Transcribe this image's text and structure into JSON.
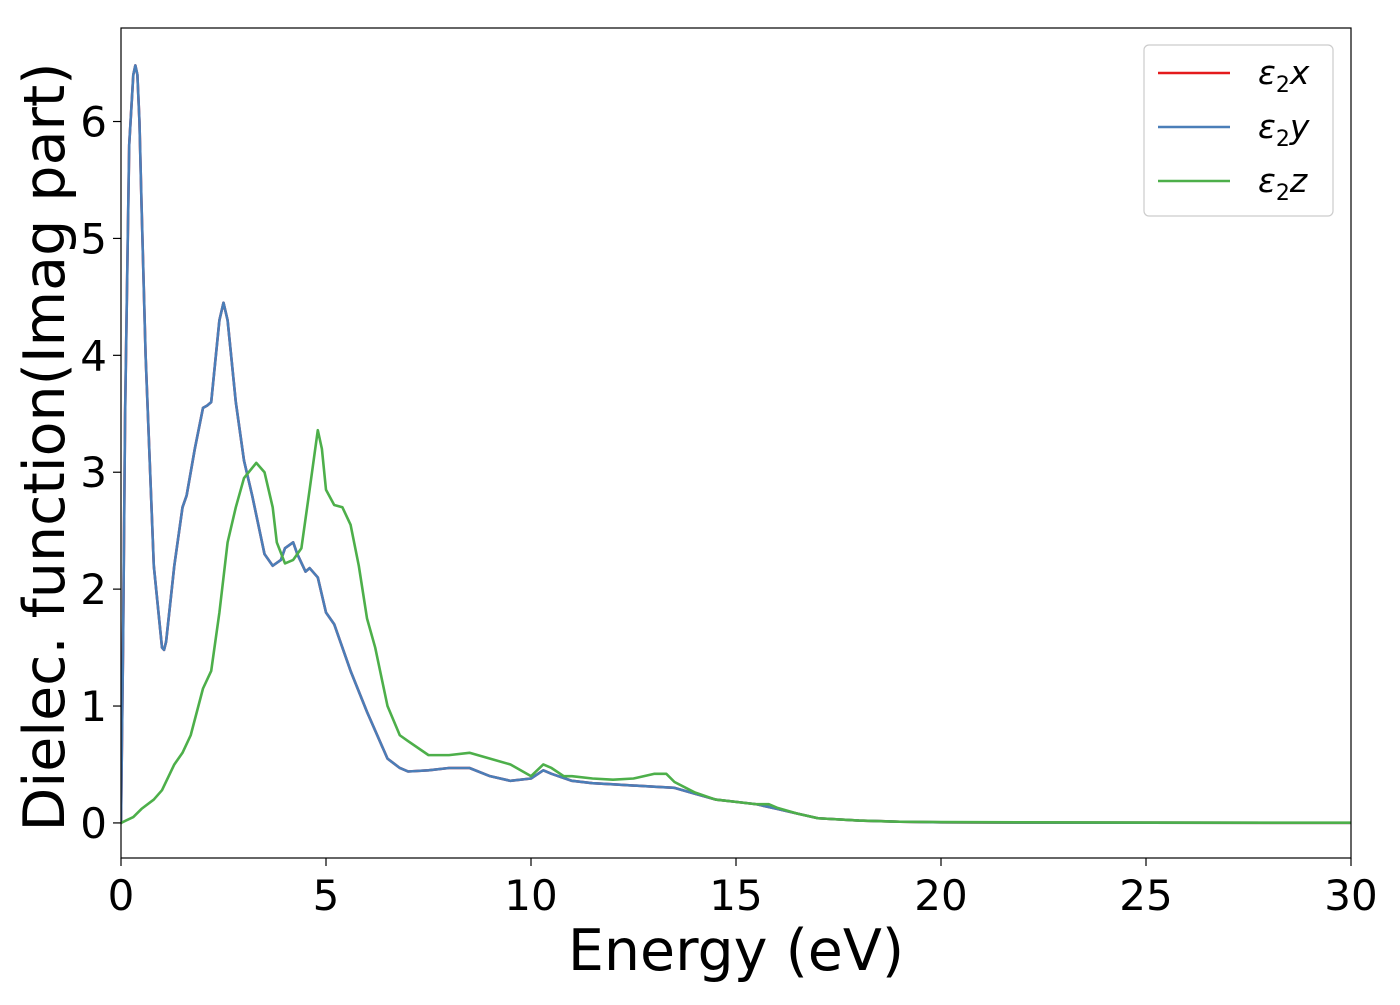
{
  "chart_data": {
    "type": "line",
    "title": "",
    "xlabel": "Energy (eV)",
    "ylabel": "Dielec. function(Imag part)",
    "xlim": [
      0,
      30
    ],
    "ylim": [
      -0.3,
      6.8
    ],
    "xticks": [
      0,
      5,
      10,
      15,
      20,
      25,
      30
    ],
    "yticks": [
      0,
      1,
      2,
      3,
      4,
      5,
      6
    ],
    "grid": false,
    "legend_position": "top-right",
    "series": [
      {
        "name": "ε2x",
        "legend_base": "ε",
        "legend_sub": "2",
        "legend_var": "x",
        "color": "#e41a1c",
        "x": [
          0,
          0.05,
          0.1,
          0.2,
          0.3,
          0.35,
          0.4,
          0.45,
          0.5,
          0.6,
          0.8,
          1.0,
          1.05,
          1.1,
          1.3,
          1.5,
          1.6,
          1.8,
          2.0,
          2.1,
          2.2,
          2.3,
          2.4,
          2.5,
          2.6,
          2.8,
          3.0,
          3.2,
          3.5,
          3.7,
          3.9,
          4.0,
          4.2,
          4.3,
          4.5,
          4.6,
          4.8,
          5.0,
          5.2,
          5.4,
          5.6,
          6.0,
          6.5,
          6.8,
          7.0,
          7.5,
          8.0,
          8.5,
          9.0,
          9.5,
          10.0,
          10.3,
          10.5,
          11.0,
          11.5,
          12.0,
          12.5,
          13.0,
          13.5,
          14.0,
          14.5,
          15.0,
          15.5,
          16.0,
          16.5,
          17.0,
          18.0,
          19.0,
          20.0,
          22.0,
          25.0,
          30.0
        ],
        "y": [
          0,
          1.5,
          3.5,
          5.8,
          6.4,
          6.48,
          6.4,
          6.0,
          5.3,
          4.0,
          2.2,
          1.5,
          1.48,
          1.55,
          2.2,
          2.7,
          2.8,
          3.2,
          3.55,
          3.57,
          3.6,
          3.95,
          4.3,
          4.45,
          4.3,
          3.6,
          3.1,
          2.8,
          2.3,
          2.2,
          2.25,
          2.35,
          2.4,
          2.3,
          2.15,
          2.18,
          2.1,
          1.8,
          1.7,
          1.5,
          1.3,
          0.95,
          0.55,
          0.47,
          0.44,
          0.45,
          0.47,
          0.47,
          0.4,
          0.36,
          0.38,
          0.45,
          0.42,
          0.36,
          0.34,
          0.33,
          0.32,
          0.31,
          0.3,
          0.25,
          0.2,
          0.18,
          0.16,
          0.12,
          0.08,
          0.04,
          0.02,
          0.01,
          0.005,
          0.003,
          0.002,
          0.001
        ]
      },
      {
        "name": "ε2y",
        "legend_base": "ε",
        "legend_sub": "2",
        "legend_var": "y",
        "color": "#4a7eb8",
        "x": [
          0,
          0.05,
          0.1,
          0.2,
          0.3,
          0.35,
          0.4,
          0.45,
          0.5,
          0.6,
          0.8,
          1.0,
          1.05,
          1.1,
          1.3,
          1.5,
          1.6,
          1.8,
          2.0,
          2.1,
          2.2,
          2.3,
          2.4,
          2.5,
          2.6,
          2.8,
          3.0,
          3.2,
          3.5,
          3.7,
          3.9,
          4.0,
          4.2,
          4.3,
          4.5,
          4.6,
          4.8,
          5.0,
          5.2,
          5.4,
          5.6,
          6.0,
          6.5,
          6.8,
          7.0,
          7.5,
          8.0,
          8.5,
          9.0,
          9.5,
          10.0,
          10.3,
          10.5,
          11.0,
          11.5,
          12.0,
          12.5,
          13.0,
          13.5,
          14.0,
          14.5,
          15.0,
          15.5,
          16.0,
          16.5,
          17.0,
          18.0,
          19.0,
          20.0,
          22.0,
          25.0,
          30.0
        ],
        "y": [
          0,
          1.5,
          3.5,
          5.8,
          6.4,
          6.48,
          6.4,
          6.0,
          5.3,
          4.0,
          2.2,
          1.5,
          1.48,
          1.55,
          2.2,
          2.7,
          2.8,
          3.2,
          3.55,
          3.57,
          3.6,
          3.95,
          4.3,
          4.45,
          4.3,
          3.6,
          3.1,
          2.8,
          2.3,
          2.2,
          2.25,
          2.35,
          2.4,
          2.3,
          2.15,
          2.18,
          2.1,
          1.8,
          1.7,
          1.5,
          1.3,
          0.95,
          0.55,
          0.47,
          0.44,
          0.45,
          0.47,
          0.47,
          0.4,
          0.36,
          0.38,
          0.45,
          0.42,
          0.36,
          0.34,
          0.33,
          0.32,
          0.31,
          0.3,
          0.25,
          0.2,
          0.18,
          0.16,
          0.12,
          0.08,
          0.04,
          0.02,
          0.01,
          0.005,
          0.003,
          0.002,
          0.001
        ]
      },
      {
        "name": "ε2z",
        "legend_base": "ε",
        "legend_sub": "2",
        "legend_var": "z",
        "color": "#4daf4a",
        "x": [
          0,
          0.3,
          0.5,
          0.8,
          1.0,
          1.3,
          1.5,
          1.7,
          2.0,
          2.2,
          2.4,
          2.6,
          2.8,
          3.0,
          3.3,
          3.5,
          3.7,
          3.8,
          4.0,
          4.2,
          4.4,
          4.6,
          4.8,
          4.9,
          5.0,
          5.2,
          5.4,
          5.6,
          5.8,
          6.0,
          6.2,
          6.5,
          6.8,
          7.0,
          7.5,
          8.0,
          8.5,
          9.0,
          9.5,
          10.0,
          10.3,
          10.5,
          10.8,
          11.0,
          11.5,
          12.0,
          12.5,
          13.0,
          13.3,
          13.5,
          14.0,
          14.5,
          15.0,
          15.5,
          15.8,
          16.0,
          16.5,
          17.0,
          18.0,
          19.0,
          20.0,
          22.0,
          25.0,
          30.0
        ],
        "y": [
          0,
          0.05,
          0.12,
          0.2,
          0.28,
          0.5,
          0.6,
          0.75,
          1.15,
          1.3,
          1.8,
          2.4,
          2.7,
          2.95,
          3.08,
          3.0,
          2.7,
          2.4,
          2.22,
          2.25,
          2.35,
          2.85,
          3.36,
          3.2,
          2.85,
          2.72,
          2.7,
          2.55,
          2.2,
          1.75,
          1.5,
          1.0,
          0.75,
          0.7,
          0.58,
          0.58,
          0.6,
          0.55,
          0.5,
          0.4,
          0.5,
          0.47,
          0.4,
          0.4,
          0.38,
          0.37,
          0.38,
          0.42,
          0.42,
          0.35,
          0.26,
          0.2,
          0.18,
          0.16,
          0.16,
          0.13,
          0.08,
          0.04,
          0.02,
          0.01,
          0.007,
          0.005,
          0.003,
          0.002
        ]
      }
    ]
  }
}
